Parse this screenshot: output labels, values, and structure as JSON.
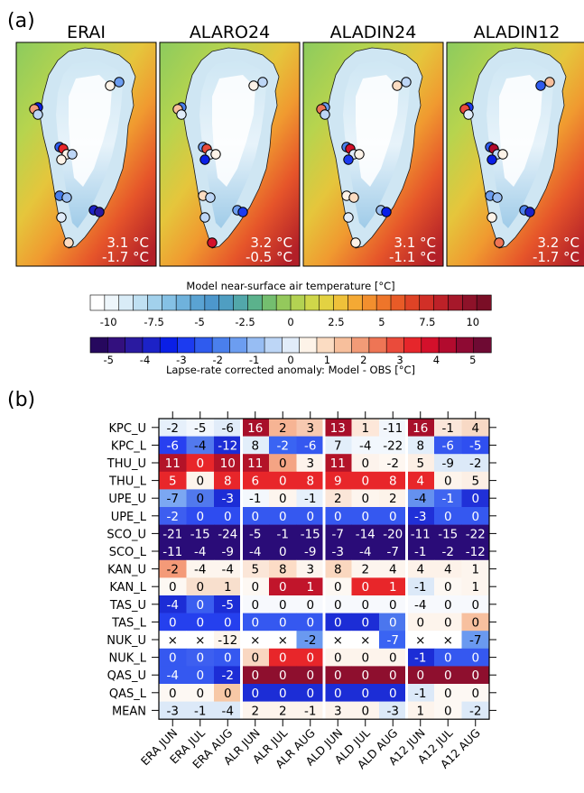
{
  "panel_labels": {
    "a": "(a)",
    "b": "(b)"
  },
  "chart_data": [
    {
      "type": "map",
      "panels": [
        {
          "title": "ERAI",
          "stats": [
            "3.1 °C",
            "-1.7 °C"
          ]
        },
        {
          "title": "ALARO24",
          "stats": [
            "3.2 °C",
            "-0.5 °C"
          ]
        },
        {
          "title": "ALADIN24",
          "stats": [
            "3.1 °C",
            "-1.1 °C"
          ]
        },
        {
          "title": "ALADIN12",
          "stats": [
            "3.2 °C",
            "-1.7 °C"
          ]
        }
      ],
      "colorbar_temperature": {
        "title": "Model near-surface air temperature [°C]",
        "range": [
          -11,
          11
        ],
        "ticks": [
          "-10",
          "-7.5",
          "-5",
          "-2.5",
          "0",
          "2.5",
          "5",
          "7.5",
          "10"
        ],
        "tick_values": [
          -10,
          -7.5,
          -5,
          -2.5,
          0,
          2.5,
          5,
          7.5,
          10
        ],
        "colors": [
          "#ffffff",
          "#eef6fb",
          "#d9ecf7",
          "#bfe0f2",
          "#a2d1ec",
          "#85c1e5",
          "#6fb2dc",
          "#5aa3d3",
          "#4d97cc",
          "#4f9ec2",
          "#52a7aa",
          "#5bb28c",
          "#74be6f",
          "#94c95c",
          "#b3d252",
          "#cfd74a",
          "#e3d242",
          "#efc13a",
          "#f4a934",
          "#f28f2e",
          "#ee752a",
          "#e85b27",
          "#df4326",
          "#d12f27",
          "#bd2128",
          "#a6182a",
          "#8e1229",
          "#7a0e26"
        ]
      },
      "colorbar_anomaly": {
        "title": "Lapse-rate corrected anomaly: Model - OBS [°C]",
        "range": [
          -5.5,
          5.5
        ],
        "ticks": [
          "-5",
          "-4",
          "-3",
          "-2",
          "-1",
          "0",
          "1",
          "2",
          "3",
          "4",
          "5"
        ],
        "tick_values": [
          -5,
          -4,
          -3,
          -2,
          -1,
          0,
          1,
          2,
          3,
          4,
          5
        ],
        "colors": [
          "#26085e",
          "#33107e",
          "#2a1aa0",
          "#1c22c7",
          "#0a1fe6",
          "#1c3bf0",
          "#2f5bee",
          "#4a7fec",
          "#6c9df0",
          "#97bdf3",
          "#bdd6f6",
          "#e1ecf9",
          "#fdf3e8",
          "#fbdcc2",
          "#f7bf9c",
          "#f29b77",
          "#ee7555",
          "#ea4b3b",
          "#e6262b",
          "#d3102b",
          "#b20b2e",
          "#8e0a33",
          "#6e0a33"
        ]
      },
      "stations": [
        {
          "panel": "ERAI",
          "values": [
            -1.5,
            0.3,
            -3.5,
            2.0,
            -0.5,
            -2.5,
            3.5,
            0.5,
            -0.3,
            0.5,
            -2.0,
            -1.0,
            -4.0,
            -4.5,
            -0.2,
            1.0
          ]
        },
        {
          "panel": "ALARO24",
          "values": [
            -0.5,
            0.3,
            -2.0,
            1.5,
            0.2,
            -1.5,
            3.0,
            -0.2,
            0.5,
            -3.5,
            1.0,
            -0.5,
            -1.5,
            -3.0,
            -0.3,
            4.0
          ]
        },
        {
          "panel": "ALADIN24",
          "values": [
            -0.3,
            0.8,
            -1.5,
            2.5,
            -0.5,
            -2.0,
            4.0,
            0.2,
            0.4,
            -3.0,
            0.6,
            1.0,
            -0.8,
            -3.5,
            -0.2,
            0.3
          ]
        },
        {
          "panel": "ALADIN12",
          "values": [
            1.5,
            -2.5,
            -3.0,
            3.0,
            0.2,
            -2.5,
            4.5,
            -0.3,
            0.5,
            -3.5,
            -1.5,
            -1.0,
            -2.0,
            -4.0,
            0.5,
            2.5
          ]
        }
      ]
    },
    {
      "type": "heatmap",
      "rows": [
        "KPC_U",
        "KPC_L",
        "THU_U",
        "THU_L",
        "UPE_U",
        "UPE_L",
        "SCO_U",
        "SCO_L",
        "KAN_U",
        "KAN_L",
        "TAS_U",
        "TAS_L",
        "NUK_U",
        "NUK_L",
        "QAS_U",
        "QAS_L",
        "MEAN"
      ],
      "columns": [
        "ERA JUN",
        "ERA JUL",
        "ERA AUG",
        "ALR JUN",
        "ALR JUL",
        "ALR AUG",
        "ALD JUN",
        "ALD JUL",
        "ALD AUG",
        "A12 JUN",
        "A12 JUL",
        "A12 AUG"
      ],
      "missing_marker": "×",
      "cells": [
        [
          "-2",
          "-5",
          "-6",
          "16",
          "2",
          "3",
          "13",
          "1",
          "-11",
          "16",
          "-1",
          "4"
        ],
        [
          "-6",
          "-4",
          "-12",
          "8",
          "-2",
          "-6",
          "7",
          "-4",
          "-22",
          "8",
          "-6",
          "-5"
        ],
        [
          "11",
          "0",
          "10",
          "11",
          "0",
          "3",
          "11",
          "0",
          "-2",
          "5",
          "-9",
          "-2"
        ],
        [
          "5",
          "0",
          "8",
          "6",
          "0",
          "8",
          "9",
          "0",
          "8",
          "4",
          "0",
          "5"
        ],
        [
          "-7",
          "0",
          "-3",
          "-1",
          "0",
          "-1",
          "2",
          "0",
          "2",
          "-4",
          "-1",
          "0"
        ],
        [
          "-2",
          "0",
          "0",
          "0",
          "0",
          "0",
          "0",
          "0",
          "0",
          "-3",
          "0",
          "0"
        ],
        [
          "-21",
          "-15",
          "-24",
          "-5",
          "-1",
          "-15",
          "-7",
          "-14",
          "-20",
          "-11",
          "-15",
          "-22"
        ],
        [
          "-11",
          "-4",
          "-9",
          "-4",
          "0",
          "-9",
          "-3",
          "-4",
          "-7",
          "-1",
          "-2",
          "-12"
        ],
        [
          "-2",
          "-4",
          "-4",
          "5",
          "8",
          "3",
          "8",
          "2",
          "4",
          "4",
          "4",
          "1"
        ],
        [
          "0",
          "0",
          "1",
          "0",
          "0",
          "1",
          "0",
          "0",
          "1",
          "-1",
          "0",
          "1"
        ],
        [
          "-4",
          "0",
          "-5",
          "0",
          "0",
          "0",
          "0",
          "0",
          "0",
          "-4",
          "0",
          "0"
        ],
        [
          "0",
          "0",
          "0",
          "0",
          "0",
          "0",
          "0",
          "0",
          "0",
          "0",
          "0",
          "0"
        ],
        [
          "×",
          "×",
          "-12",
          "×",
          "×",
          "-2",
          "×",
          "×",
          "-7",
          "×",
          "×",
          "-7"
        ],
        [
          "0",
          "0",
          "0",
          "0",
          "0",
          "0",
          "0",
          "0",
          "0",
          "-1",
          "0",
          "0"
        ],
        [
          "-4",
          "0",
          "-2",
          "0",
          "0",
          "0",
          "0",
          "0",
          "0",
          "0",
          "0",
          "0"
        ],
        [
          "0",
          "0",
          "0",
          "0",
          "0",
          "0",
          "0",
          "0",
          "0",
          "-1",
          "0",
          "0"
        ],
        [
          "-3",
          "-1",
          "-4",
          "2",
          "2",
          "-1",
          "3",
          "0",
          "-3",
          "1",
          "0",
          "-2"
        ]
      ],
      "cell_colors": [
        [
          "#e6f0fb",
          "#f2f7fd",
          "#e1ecf9",
          "#a80f2a",
          "#f6b494",
          "#f7c9b0",
          "#a80f2a",
          "#fde7d9",
          "#f2f6fc",
          "#a80f2a",
          "#fbe6d9",
          "#f8d9c5"
        ],
        [
          "#2840f0",
          "#5279ee",
          "#1c2dd6",
          "#e2eefa",
          "#3a64f3",
          "#3558f0",
          "#e2eefa",
          "#f2f7fd",
          "#f2f7fd",
          "#e2eefa",
          "#3558f0",
          "#2f4ff0"
        ],
        [
          "#b31328",
          "#e8262a",
          "#b31328",
          "#b31328",
          "#f4a484",
          "#fdf3ec",
          "#b31328",
          "#fdf3ec",
          "#fef7f1",
          "#fcefe5",
          "#dce9f8",
          "#dce9f8"
        ],
        [
          "#e8262a",
          "#fdf4ec",
          "#e8262a",
          "#e8262a",
          "#e8262a",
          "#e8262a",
          "#e8262a",
          "#e8262a",
          "#e8262a",
          "#e8262a",
          "#fdf4ec",
          "#fcefe5"
        ],
        [
          "#7ba7f2",
          "#5179ed",
          "#1c2dd6",
          "#f4f8fd",
          "#fdf5ee",
          "#e6f0fb",
          "#fbe6d8",
          "#fdf5ee",
          "#fdf3ea",
          "#6591ef",
          "#3f65f0",
          "#2030d8"
        ],
        [
          "#3d5ef0",
          "#2e4cf0",
          "#2e4cf0",
          "#3558f0",
          "#3558f0",
          "#3558f0",
          "#3558f0",
          "#3558f0",
          "#3558f0",
          "#2030d8",
          "#3558f0",
          "#3558f0"
        ],
        [
          "#2a0c78",
          "#2a0c78",
          "#2a0c78",
          "#2a0c78",
          "#2a0c78",
          "#2a0c78",
          "#2a0c78",
          "#2a0c78",
          "#2a0c78",
          "#2a0c78",
          "#2a0c78",
          "#2a0c78"
        ],
        [
          "#2a0c78",
          "#2a0c78",
          "#2a0c78",
          "#2a0c78",
          "#2a0c78",
          "#2a0c78",
          "#2a0c78",
          "#2a0c78",
          "#2a0c78",
          "#2a0c78",
          "#2a0c78",
          "#2a0c78"
        ],
        [
          "#f49a78",
          "#fdf5ee",
          "#fdf5ee",
          "#fbe6d8",
          "#fcdcc6",
          "#fdf5ee",
          "#fad7bf",
          "#fdf5ee",
          "#fdf5ee",
          "#fdf2e9",
          "#fdf2e9",
          "#fdf5ee"
        ],
        [
          "#fdf8f3",
          "#f8dfcd",
          "#f8dfcd",
          "#fdf8f3",
          "#c1152b",
          "#c1152b",
          "#fdf8f3",
          "#e8262a",
          "#e8262a",
          "#dce9f8",
          "#fdf8f3",
          "#fdf5ee"
        ],
        [
          "#1c2dd6",
          "#3a5ef0",
          "#1c2dd6",
          "#f7f9fd",
          "#f7f9fd",
          "#f7f9fd",
          "#f7f9fd",
          "#f7f9fd",
          "#f7f9fd",
          "#f7f9fd",
          "#f7f9fd",
          "#f7f9fd"
        ],
        [
          "#2540ee",
          "#2540ee",
          "#2540ee",
          "#3558f0",
          "#3558f0",
          "#3558f0",
          "#1c2dd6",
          "#1c2dd6",
          "#4b76ee",
          "#fdf4ec",
          "#fdf4ec",
          "#f7c09f"
        ],
        [
          "#ffffff",
          "#ffffff",
          "#fdf4ec",
          "#ffffff",
          "#ffffff",
          "#6a99f0",
          "#ffffff",
          "#ffffff",
          "#3a64f3",
          "#ffffff",
          "#ffffff",
          "#6a99f0"
        ],
        [
          "#3558f0",
          "#3d5ff0",
          "#3558f0",
          "#f9d7c1",
          "#e8262a",
          "#e8262a",
          "#fdf4ec",
          "#fdf4ec",
          "#fdf4ec",
          "#1c2dd6",
          "#3558f0",
          "#3558f0"
        ],
        [
          "#3558f0",
          "#3558f0",
          "#1c2dd6",
          "#8e0f2e",
          "#8e0f2e",
          "#8e0f2e",
          "#8e0f2e",
          "#8e0f2e",
          "#8e0f2e",
          "#8e0f2e",
          "#8e0f2e",
          "#8e0f2e"
        ],
        [
          "#fdf8f3",
          "#fdf8f3",
          "#f7c8a6",
          "#1c2dd6",
          "#1c2dd6",
          "#1c2dd6",
          "#1c2dd6",
          "#1c2dd6",
          "#1c2dd6",
          "#dce9f8",
          "#fdf8f3",
          "#fdf8f3"
        ],
        [
          "#dce9f8",
          "#dce9f8",
          "#dce9f8",
          "#fdf4ec",
          "#fdf4ec",
          "#fdf4ec",
          "#fdf4ec",
          "#fdf4ec",
          "#dce9f8",
          "#fdf4ec",
          "#fdf8f3",
          "#dce9f8"
        ]
      ]
    }
  ]
}
